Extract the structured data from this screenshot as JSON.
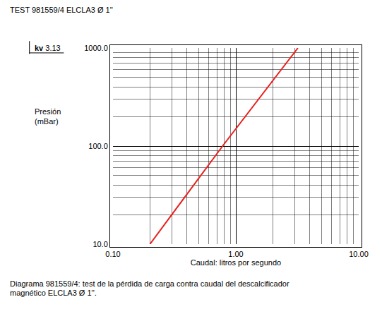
{
  "chart_data": {
    "type": "line",
    "title": "TEST 981559/4 ELCLA3 Ø 1''",
    "annotations": [
      {
        "label": "kv",
        "value": 3.13
      }
    ],
    "xlabel": "Caudal: litros por segundo",
    "ylabel": "Presión (mBar)",
    "caption": "Diagrama 981559/4: test de la  pérdida de carga contra caudal del descalcificador magnético ELCLA3 Ø 1''.",
    "x": [
      0.2,
      0.78,
      3.2
    ],
    "values": [
      10,
      100,
      1000
    ],
    "color": "#e8201c",
    "log": true,
    "grid": true,
    "xlim": [
      0.1,
      10
    ],
    "ylim": [
      10,
      1000
    ],
    "xticks": [
      {
        "value": 0.1,
        "label": "0.10"
      },
      {
        "value": 1,
        "label": "1.00"
      },
      {
        "value": 10,
        "label": "10.00"
      }
    ],
    "yticks": [
      {
        "value": 10,
        "label": "10.0"
      },
      {
        "value": 100,
        "label": "100.0"
      },
      {
        "value": 1000,
        "label": "1000.0"
      }
    ]
  }
}
